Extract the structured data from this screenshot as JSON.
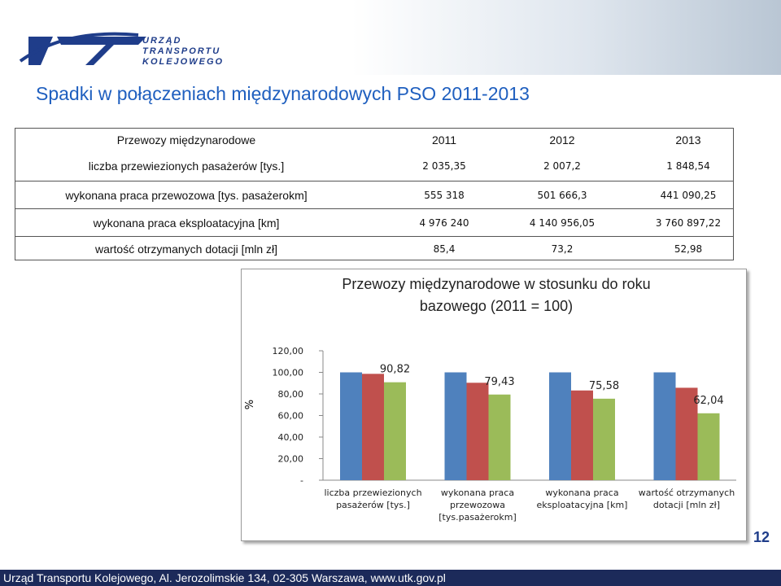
{
  "header": {
    "logo": [
      "URZĄD",
      "TRANSPORTU",
      "KOLEJOWEGO"
    ],
    "title": "Spadki w połączeniach międzynarodowych PSO 2011-2013"
  },
  "table": {
    "header": [
      "Przewozy międzynarodowe",
      "2011",
      "2012",
      "2013"
    ],
    "rows": [
      [
        "liczba przewiezionych pasażerów [tys.]",
        "2 035,35",
        "2 007,2",
        "1 848,54"
      ],
      [
        "wykonana praca przewozowa [tys. pasażerokm]",
        "555 318",
        "501 666,3",
        "441 090,25"
      ],
      [
        "wykonana praca eksploatacyjna [km]",
        "4 976 240",
        "4 140 956,05",
        "3 760 897,22"
      ],
      [
        "wartość otrzymanych dotacji [mln zł]",
        "85,4",
        "73,2",
        "52,98"
      ]
    ]
  },
  "chart_data": {
    "type": "bar",
    "title": "Przewozy międzynarodowe w stosunku do roku bazowego  (2011 = 100)",
    "y_label": "%",
    "categories": [
      "liczba przewiezionych pasażerów [tys.]",
      "wykonana praca przewozowa [tys.pasażerokm]",
      "wykonana praca eksploatacyjna [km]",
      "wartość otrzymanych dotacji [mln zł]"
    ],
    "series": [
      {
        "color": "#4f81bd",
        "values": [
          100,
          100,
          100,
          100
        ]
      },
      {
        "color": "#c0504d",
        "values": [
          98.62,
          90.34,
          83.21,
          85.71
        ]
      },
      {
        "color": "#9bbb59",
        "values": [
          90.82,
          79.43,
          75.58,
          62.04
        ],
        "value_labels": [
          "90,82",
          "79,43",
          "75,58",
          "62,04"
        ]
      }
    ],
    "ylim": [
      0,
      120
    ],
    "yticks": [
      {
        "value": 0,
        "label": "-"
      },
      {
        "value": 20,
        "label": "20,00"
      },
      {
        "value": 40,
        "label": "40,00"
      },
      {
        "value": 60,
        "label": "60,00"
      },
      {
        "value": 80,
        "label": "80,00"
      },
      {
        "value": 100,
        "label": "100,00"
      },
      {
        "value": 120,
        "label": "120,00"
      }
    ]
  },
  "footer": {
    "page_number": "12",
    "address": "Urząd Transportu Kolejowego, Al. Jerozolimskie 134, 02-305 Warszawa, www.utk.gov.pl"
  }
}
